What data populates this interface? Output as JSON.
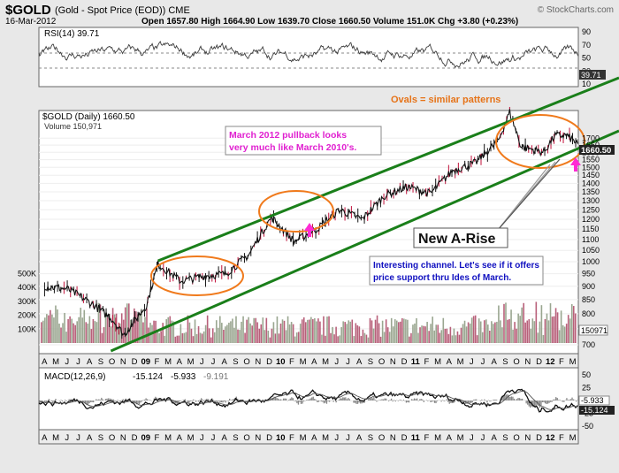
{
  "header": {
    "symbol": "$GOLD",
    "description": "(Gold - Spot Price (EOD)) CME",
    "date": "16-Mar-2012",
    "ohlc": "Open 1657.80  High 1664.90  Low 1639.70  Close 1660.50  Volume 151.0K  Chg +3.80 (+0.23%)",
    "brand": "© StockCharts.com"
  },
  "rsi": {
    "label": "RSI(14) 39.71",
    "ticks": [
      "90",
      "70",
      "50",
      "30",
      "10"
    ],
    "current_badge": "39.71"
  },
  "price": {
    "label": "$GOLD (Daily) 1660.50",
    "volume_label": "Volume 150,971",
    "y_ticks": [
      "1700",
      "1650",
      "1600",
      "1550",
      "1500",
      "1450",
      "1400",
      "1350",
      "1300",
      "1250",
      "1200",
      "1150",
      "1100",
      "1050",
      "1000",
      "950",
      "900",
      "850",
      "800",
      "750",
      "700"
    ],
    "volume_ticks": [
      "500K",
      "400K",
      "300K",
      "200K",
      "100K"
    ],
    "close_badge": "1660.50",
    "volume_badge": "150971"
  },
  "annotations": {
    "ovals_note": "Ovals = similar patterns",
    "pullback_note": "March 2012 pullback looks very much like March 2010's.",
    "arise": "New A-Rise",
    "channel_note": "Interesting channel. Let's see if it offers price support thru Ides of March."
  },
  "macd": {
    "label": "MACD(12,26,9)",
    "v1": "-15.124",
    "v2": "-5.933",
    "v3": "-9.191",
    "ticks": [
      "50",
      "25",
      "0",
      "-25",
      "-50"
    ],
    "badge1": "-5.933",
    "badge2": "-15.124"
  },
  "x_axis": {
    "labels": [
      "A",
      "M",
      "J",
      "J",
      "A",
      "S",
      "O",
      "N",
      "D",
      "09",
      "F",
      "M",
      "A",
      "M",
      "J",
      "J",
      "A",
      "S",
      "O",
      "N",
      "D",
      "10",
      "F",
      "M",
      "A",
      "M",
      "J",
      "J",
      "A",
      "S",
      "O",
      "N",
      "D",
      "11",
      "F",
      "M",
      "A",
      "M",
      "J",
      "J",
      "A",
      "S",
      "O",
      "N",
      "D",
      "12",
      "F",
      "M"
    ]
  },
  "colors": {
    "price_line": "#111111",
    "channel": "#1a7f1a",
    "oval": "#f07a1c",
    "pullback_text": "#e020d0",
    "arrow": "#ff2ad4",
    "channel_text": "#1010c0",
    "volume_up": "#9aa690",
    "volume_down": "#b8607a"
  },
  "chart_data": {
    "type": "line",
    "title": "$GOLD (Daily)",
    "x_range": [
      "2008-04",
      "2012-03-16"
    ],
    "y_range": [
      700,
      1700
    ],
    "x": [
      "2008-04",
      "2008-06",
      "2008-08",
      "2008-10",
      "2008-11",
      "2009-01",
      "2009-02",
      "2009-04",
      "2009-06",
      "2009-08",
      "2009-10",
      "2009-12",
      "2010-02",
      "2010-04",
      "2010-06",
      "2010-08",
      "2010-10",
      "2010-12",
      "2011-02",
      "2011-04",
      "2011-06",
      "2011-08",
      "2011-09",
      "2011-10",
      "2011-12",
      "2012-01",
      "2012-02",
      "2012-03"
    ],
    "series": [
      {
        "values": [
          900,
          890,
          840,
          780,
          730,
          830,
          990,
          920,
          940,
          950,
          1030,
          1210,
          1090,
          1150,
          1250,
          1200,
          1330,
          1380,
          1340,
          1480,
          1530,
          1680,
          1900,
          1640,
          1600,
          1720,
          1720,
          1660
        ]
      }
    ],
    "channel_upper": {
      "x": [
        "2009-02",
        "2012-03"
      ],
      "y": [
        1000,
        1900
      ]
    },
    "channel_lower": {
      "x": [
        "2008-10",
        "2012-03"
      ],
      "y": [
        700,
        1600
      ]
    }
  }
}
